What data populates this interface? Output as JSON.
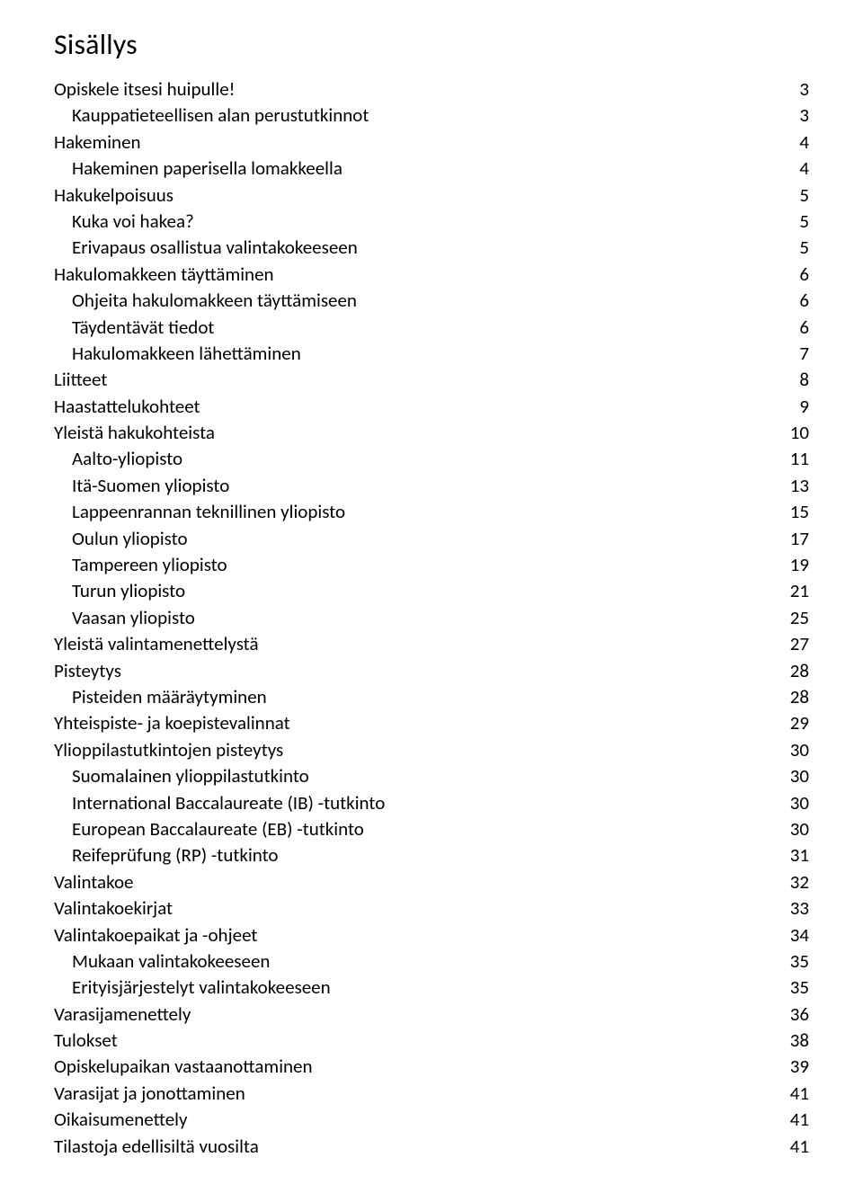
{
  "title": "Sisällys",
  "text_color": "#000000",
  "background_color": "#ffffff",
  "font_family": "Candara, Corbel, 'Segoe UI', Calibri, sans-serif",
  "title_fontsize": 32,
  "body_fontsize": 21,
  "entries": [
    {
      "label": "Opiskele itsesi huipulle!",
      "page": 3,
      "indent": 0
    },
    {
      "label": "Kauppatieteellisen alan perustutkinnot",
      "page": 3,
      "indent": 1
    },
    {
      "label": "Hakeminen",
      "page": 4,
      "indent": 0
    },
    {
      "label": "Hakeminen paperisella lomakkeella",
      "page": 4,
      "indent": 1
    },
    {
      "label": "Hakukelpoisuus",
      "page": 5,
      "indent": 0
    },
    {
      "label": "Kuka voi hakea?",
      "page": 5,
      "indent": 1
    },
    {
      "label": "Erivapaus osallistua valintakokeeseen",
      "page": 5,
      "indent": 1
    },
    {
      "label": "Hakulomakkeen täyttäminen",
      "page": 6,
      "indent": 0
    },
    {
      "label": "Ohjeita hakulomakkeen täyttämiseen",
      "page": 6,
      "indent": 1
    },
    {
      "label": "Täydentävät tiedot",
      "page": 6,
      "indent": 1
    },
    {
      "label": "Hakulomakkeen lähettäminen",
      "page": 7,
      "indent": 1
    },
    {
      "label": "Liitteet",
      "page": 8,
      "indent": 0
    },
    {
      "label": "Haastattelukohteet",
      "page": 9,
      "indent": 0
    },
    {
      "label": "Yleistä hakukohteista",
      "page": 10,
      "indent": 0
    },
    {
      "label": "Aalto-yliopisto",
      "page": 11,
      "indent": 1
    },
    {
      "label": "Itä-Suomen yliopisto",
      "page": 13,
      "indent": 1
    },
    {
      "label": "Lappeenrannan teknillinen yliopisto",
      "page": 15,
      "indent": 1
    },
    {
      "label": "Oulun yliopisto",
      "page": 17,
      "indent": 1
    },
    {
      "label": "Tampereen yliopisto",
      "page": 19,
      "indent": 1
    },
    {
      "label": "Turun yliopisto",
      "page": 21,
      "indent": 1
    },
    {
      "label": "Vaasan yliopisto",
      "page": 25,
      "indent": 1
    },
    {
      "label": "Yleistä valintamenettelystä",
      "page": 27,
      "indent": 0
    },
    {
      "label": "Pisteytys",
      "page": 28,
      "indent": 0
    },
    {
      "label": "Pisteiden määräytyminen",
      "page": 28,
      "indent": 1
    },
    {
      "label": "Yhteispiste- ja koepistevalinnat",
      "page": 29,
      "indent": 0
    },
    {
      "label": "Ylioppilastutkintojen pisteytys",
      "page": 30,
      "indent": 0
    },
    {
      "label": "Suomalainen ylioppilastutkinto",
      "page": 30,
      "indent": 1
    },
    {
      "label": "International Baccalaureate (IB) -tutkinto",
      "page": 30,
      "indent": 1
    },
    {
      "label": "European Baccalaureate (EB) -tutkinto",
      "page": 30,
      "indent": 1
    },
    {
      "label": "Reifeprüfung (RP) -tutkinto",
      "page": 31,
      "indent": 1
    },
    {
      "label": "Valintakoe",
      "page": 32,
      "indent": 0
    },
    {
      "label": "Valintakoekirjat",
      "page": 33,
      "indent": 0
    },
    {
      "label": "Valintakoepaikat ja -ohjeet",
      "page": 34,
      "indent": 0
    },
    {
      "label": "Mukaan valintakokeeseen",
      "page": 35,
      "indent": 1
    },
    {
      "label": "Erityisjärjestelyt valintakokeeseen",
      "page": 35,
      "indent": 1
    },
    {
      "label": "Varasijamenettely",
      "page": 36,
      "indent": 0
    },
    {
      "label": "Tulokset",
      "page": 38,
      "indent": 0
    },
    {
      "label": "Opiskelupaikan vastaanottaminen",
      "page": 39,
      "indent": 0
    },
    {
      "label": "Varasijat ja jonottaminen",
      "page": 41,
      "indent": 0
    },
    {
      "label": "Oikaisumenettely",
      "page": 41,
      "indent": 0
    },
    {
      "label": "Tilastoja edellisiltä vuosilta",
      "page": 41,
      "indent": 0
    }
  ]
}
